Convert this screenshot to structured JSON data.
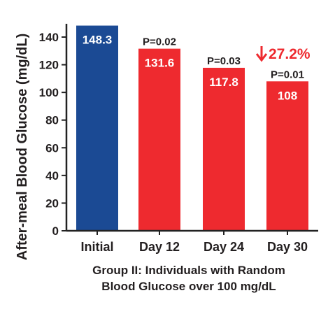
{
  "chart_data": {
    "type": "bar",
    "categories": [
      "Initial",
      "Day 12",
      "Day 24",
      "Day 30"
    ],
    "values": [
      148.3,
      131.6,
      117.8,
      108
    ],
    "value_labels": [
      "148.3",
      "131.6",
      "117.8",
      "108"
    ],
    "p_values": [
      "",
      "P=0.02",
      "P=0.03",
      "P=0.01"
    ],
    "bar_colors": [
      "#1b4a94",
      "#ee2a2f",
      "#ee2a2f",
      "#ee2a2f"
    ],
    "ylabel": "After-meal Blood Glucose (mg/dL)",
    "xlabel_line1": "Group II: Individuals with Random",
    "xlabel_line2": "Blood Glucose over 100 mg/dL",
    "ylim": [
      0,
      150
    ],
    "yticks": [
      0,
      20,
      40,
      60,
      80,
      100,
      120,
      140
    ],
    "ytick_labels": [
      "0",
      "20",
      "40",
      "60",
      "80",
      "100",
      "120",
      "140"
    ],
    "annotation": {
      "arrow_icon": "down-arrow-icon",
      "text": "27.2%",
      "color": "#ee2a2f"
    },
    "grid": false
  }
}
